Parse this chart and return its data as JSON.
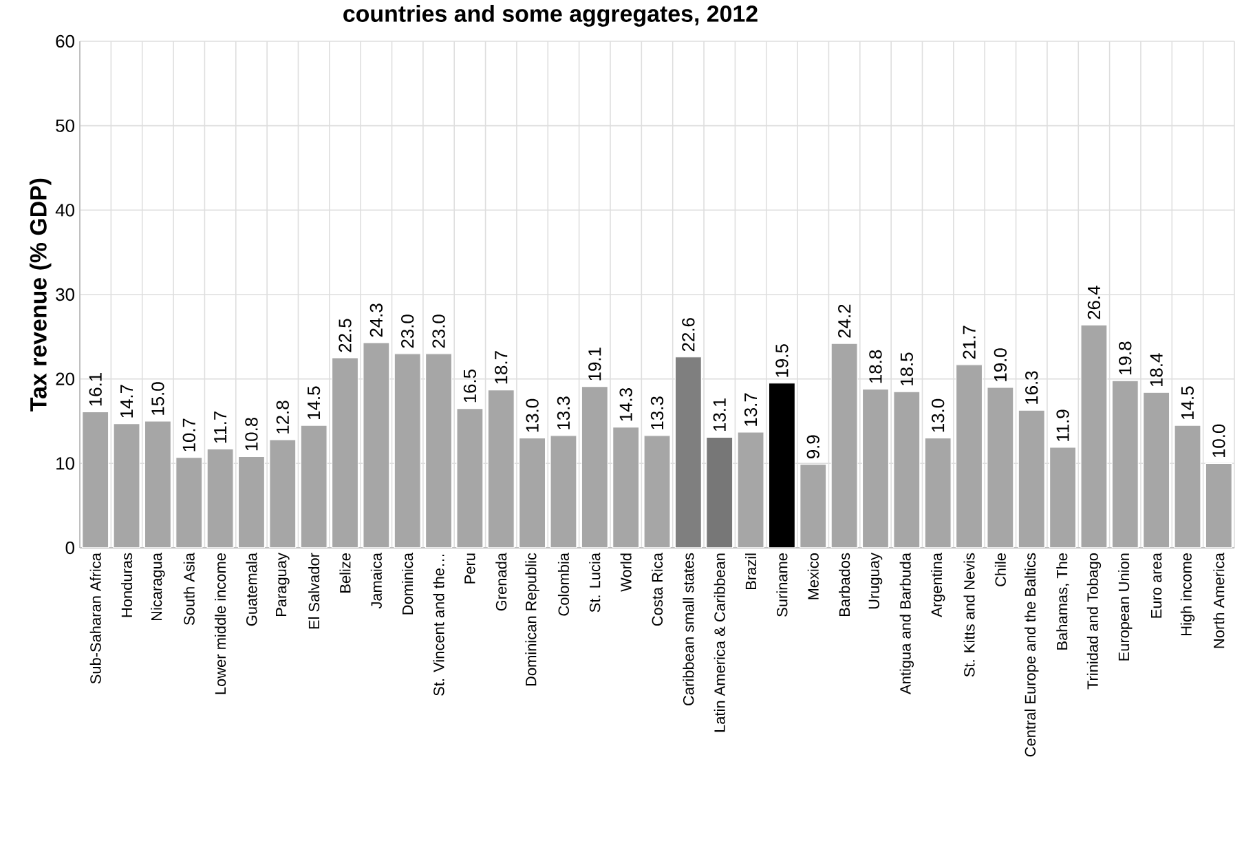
{
  "chart_data": {
    "type": "bar",
    "title": "countries and some aggregates, 2012",
    "ylabel": "Tax revenue (% GDP)",
    "categories": [
      "Sub-Saharan Africa",
      "Honduras",
      "Nicaragua",
      "South Asia",
      "Lower middle income",
      "Guatemala",
      "Paraguay",
      "El Salvador",
      "Belize",
      "Jamaica",
      "Dominica",
      "St. Vincent and the…",
      "Peru",
      "Grenada",
      "Dominican Republic",
      "Colombia",
      "St. Lucia",
      "World",
      "Costa Rica",
      "Caribbean small states",
      "Latin America & Caribbean",
      "Brazil",
      "Suriname",
      "Mexico",
      "Barbados",
      "Uruguay",
      "Antigua and Barbuda",
      "Argentina",
      "St. Kitts and Nevis",
      "Chile",
      "Central Europe and the Baltics",
      "Bahamas, The",
      "Trinidad and Tobago",
      "European Union",
      "Euro area",
      "High income",
      "North America"
    ],
    "values": [
      16.1,
      14.7,
      15.0,
      10.7,
      11.7,
      10.8,
      12.8,
      14.5,
      22.5,
      24.3,
      23.0,
      23.0,
      16.5,
      18.7,
      13.0,
      13.3,
      19.1,
      14.3,
      13.3,
      22.6,
      13.1,
      13.7,
      19.5,
      9.9,
      24.2,
      18.8,
      18.5,
      13.0,
      21.7,
      19.0,
      16.3,
      11.9,
      26.4,
      19.8,
      18.4,
      14.5,
      10.0
    ],
    "colors": [
      "#a6a6a6",
      "#a6a6a6",
      "#a6a6a6",
      "#a6a6a6",
      "#a6a6a6",
      "#a6a6a6",
      "#a6a6a6",
      "#a6a6a6",
      "#a6a6a6",
      "#a6a6a6",
      "#a6a6a6",
      "#a6a6a6",
      "#a6a6a6",
      "#a6a6a6",
      "#a6a6a6",
      "#a6a6a6",
      "#a6a6a6",
      "#a6a6a6",
      "#a6a6a6",
      "#7f7f7f",
      "#777777",
      "#a6a6a6",
      "#000000",
      "#a6a6a6",
      "#a6a6a6",
      "#a6a6a6",
      "#a6a6a6",
      "#a6a6a6",
      "#a6a6a6",
      "#a6a6a6",
      "#a6a6a6",
      "#a6a6a6",
      "#a6a6a6",
      "#a6a6a6",
      "#a6a6a6",
      "#a6a6a6",
      "#a6a6a6"
    ],
    "value_labels": [
      "16.1",
      "14.7",
      "15.0",
      "10.7",
      "11.7",
      "10.8",
      "12.8",
      "14.5",
      "22.5",
      "24.3",
      "23.0",
      "23.0",
      "16.5",
      "18.7",
      "13.0",
      "13.3",
      "19.1",
      "14.3",
      "13.3",
      "22.6",
      "13.1",
      "13.7",
      "19.5",
      "9.9",
      "24.2",
      "18.8",
      "18.5",
      "13.0",
      "21.7",
      "19.0",
      "16.3",
      "11.9",
      "26.4",
      "19.8",
      "18.4",
      "14.5",
      "10.0"
    ],
    "ylim": [
      0,
      60
    ],
    "yticks": [
      0,
      10,
      20,
      30,
      40,
      50,
      60
    ],
    "grid": true
  }
}
